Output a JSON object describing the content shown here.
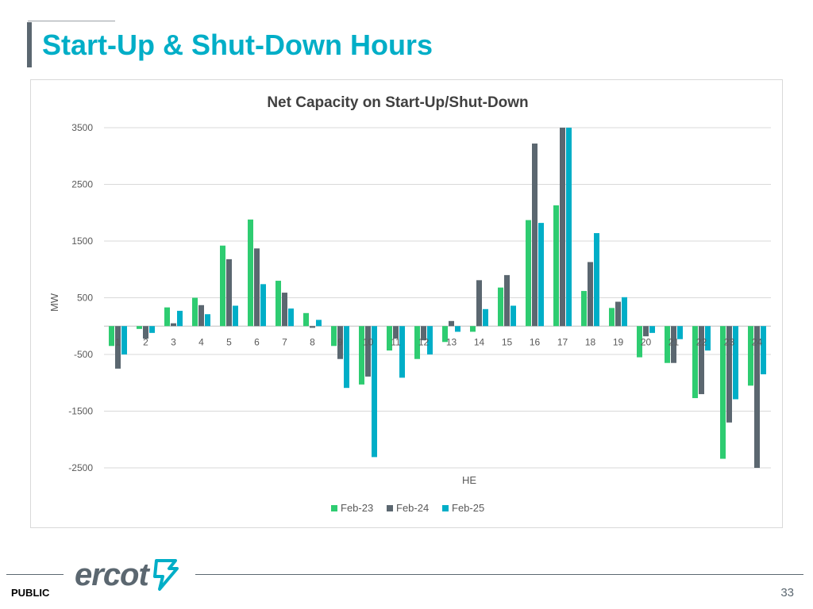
{
  "slide": {
    "title": "Start-Up & Shut-Down Hours",
    "footer_label": "PUBLIC",
    "page_number": "33",
    "logo_text": "ercot",
    "logo_icon": "ercot-star-icon"
  },
  "colors": {
    "title": "#00aec7",
    "series": [
      "#2ecc71",
      "#5b6770",
      "#00aec7"
    ],
    "grid": "#d9d9d9",
    "text": "#595959"
  },
  "chart_data": {
    "type": "bar",
    "title": "Net Capacity on Start-Up/Shut-Down",
    "xlabel": "HE",
    "ylabel": "MW",
    "ylim": [
      -2500,
      3500
    ],
    "yticks": [
      3500,
      2500,
      1500,
      500,
      -500,
      -1500,
      -2500
    ],
    "grid": true,
    "legend_position": "bottom-center",
    "categories": [
      "1",
      "2",
      "3",
      "4",
      "5",
      "6",
      "7",
      "8",
      "9",
      "10",
      "11",
      "12",
      "13",
      "14",
      "15",
      "16",
      "17",
      "18",
      "19",
      "20",
      "21",
      "22",
      "23",
      "24"
    ],
    "series": [
      {
        "name": "Feb-23",
        "values": [
          -350,
          -50,
          330,
          500,
          1420,
          1880,
          800,
          230,
          -350,
          -1030,
          -430,
          -580,
          -280,
          -100,
          680,
          1870,
          2130,
          620,
          320,
          -550,
          -650,
          -1270,
          -2340,
          -1050
        ]
      },
      {
        "name": "Feb-24",
        "values": [
          -750,
          -220,
          50,
          370,
          1180,
          1370,
          590,
          -30,
          -580,
          -890,
          -220,
          -250,
          90,
          810,
          900,
          3220,
          3500,
          1130,
          430,
          -180,
          -650,
          -1200,
          -1700,
          -2500
        ]
      },
      {
        "name": "Feb-25",
        "values": [
          -500,
          -120,
          270,
          210,
          360,
          740,
          310,
          110,
          -1090,
          -2310,
          -910,
          -500,
          -100,
          300,
          360,
          1820,
          3500,
          1640,
          510,
          -120,
          -230,
          -430,
          -1290,
          -850
        ]
      }
    ]
  }
}
